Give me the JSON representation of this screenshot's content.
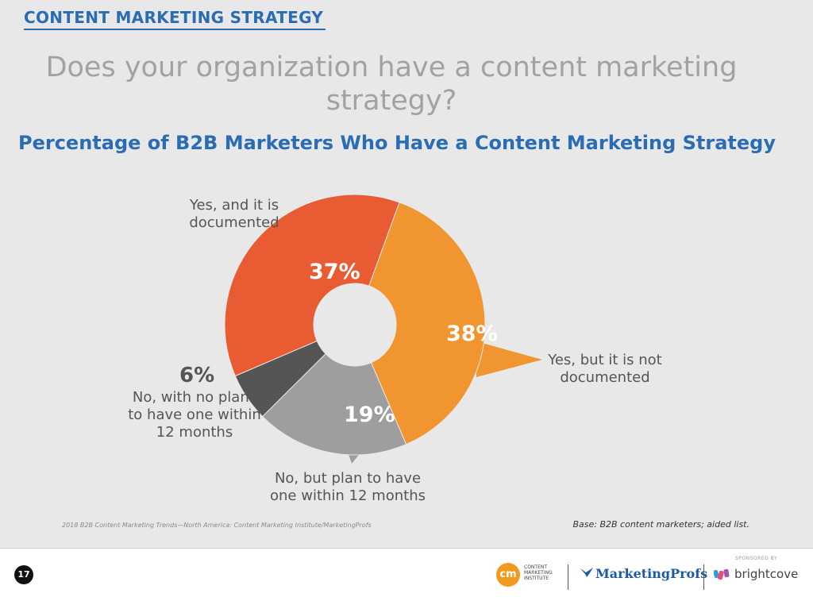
{
  "header": {
    "section_title": "CONTENT MARKETING STRATEGY"
  },
  "question": "Does your organization have a content marketing strategy?",
  "chart_data": {
    "type": "pie",
    "title": "Percentage of B2B Marketers Who Have a Content Marketing Strategy",
    "style": "donut",
    "slices": [
      {
        "label": "Yes, and it is documented",
        "value": 37,
        "display": "37%",
        "color": "#e85b33"
      },
      {
        "label": "Yes, but it is not documented",
        "value": 38,
        "display": "38%",
        "color": "#f0952f"
      },
      {
        "label": "No, but plan to have one within 12 months",
        "value": 19,
        "display": "19%",
        "color": "#9e9e9e"
      },
      {
        "label": "No, with no plans to have one within 12 months",
        "value": 6,
        "display": "6%",
        "color": "#555555"
      }
    ]
  },
  "callouts": {
    "documented": "Yes, and it is\ndocumented",
    "not_documented": "Yes, but it is not\ndocumented",
    "plan": "No, but plan to have\none within 12 months",
    "no_plans": "No, with no plans\nto have one within\n12 months"
  },
  "footnotes": {
    "source": "2018 B2B Content Marketing Trends—North America: Content Marketing Institute/MarketingProfs",
    "base": "Base: B2B content marketers; aided list."
  },
  "footer": {
    "page_number": "17",
    "cmi_logo": "cm",
    "cmi_text": "CONTENT\nMARKETING\nINSTITUTE",
    "marketingprofs": "MarketingProfs",
    "sponsored_by": "SPONSORED BY",
    "brightcove": "brightcove"
  },
  "colors": {
    "accent_blue": "#2a6db5",
    "question_gray": "#a2a2a2",
    "background": "#e8e8e8"
  }
}
